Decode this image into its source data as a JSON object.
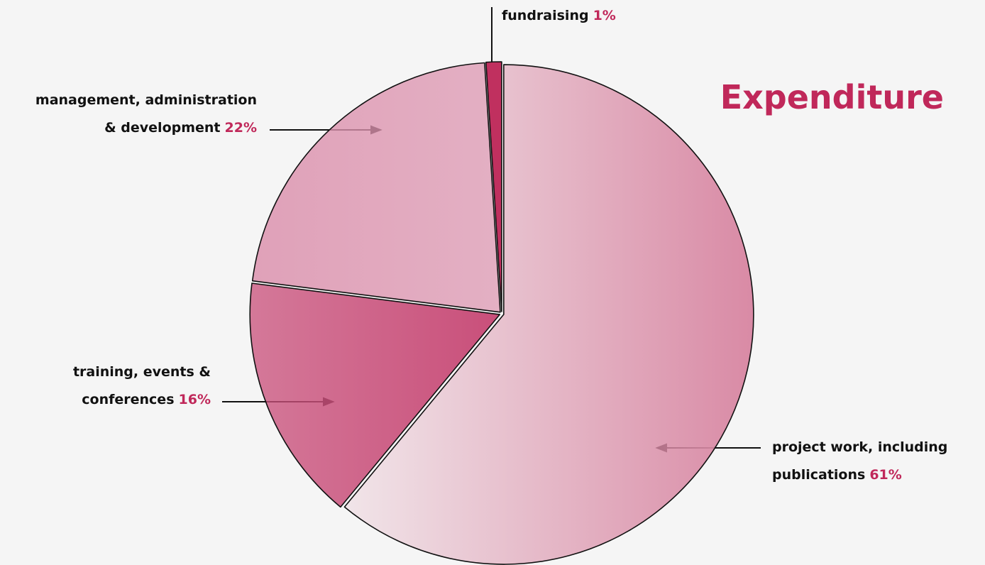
{
  "chart_data": {
    "type": "pie",
    "title": "Expenditure",
    "categories": [
      "project work, including\npublications",
      "training, events &\nconferences",
      "management, administration\n& development",
      "fundraising"
    ],
    "values": [
      61,
      16,
      22,
      1
    ],
    "value_labels": [
      "61%",
      "16%",
      "22%",
      "1%"
    ],
    "colors": [
      "#d98aa5",
      "#c94f7a",
      "#dc92ae",
      "#c0305f"
    ]
  }
}
